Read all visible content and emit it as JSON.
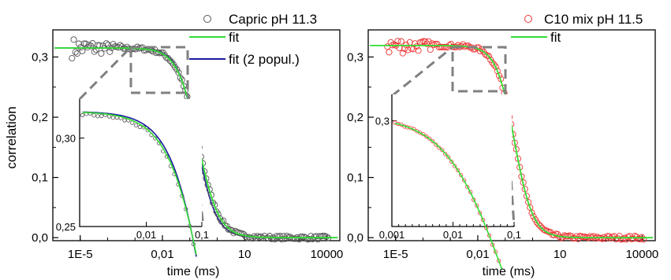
{
  "chart_data": [
    {
      "type": "scatter",
      "ylabel": "correlation",
      "xlabel": "time (ms)",
      "x_scale": "log",
      "xlim_ms": [
        1e-06,
        30000
      ],
      "ylim": [
        -0.005,
        0.345
      ],
      "x_ticks": [
        "1E-5",
        "0,01",
        "10",
        "10000"
      ],
      "y_ticks": [
        "0,0",
        "0,1",
        "0,2",
        "0,3"
      ],
      "legend": [
        "Capric pH 11.3",
        "fit",
        "fit (2 popul.)"
      ],
      "legend_position": "top-right",
      "colors": {
        "data": "#555555",
        "fit": "#33dd33",
        "fit2": "#1a1aa0",
        "zoom": "#808080"
      },
      "model": {
        "plateau": 0.315,
        "tau_ms": 0.2,
        "shape_k": 1.15
      },
      "inset": {
        "x_ticks": [
          "0,01",
          "0,1"
        ],
        "y_ticks": [
          "0,30",
          "0,25"
        ],
        "ylim": [
          0.25,
          0.32
        ]
      }
    },
    {
      "type": "scatter",
      "xlabel": "time (ms)",
      "x_scale": "log",
      "xlim_ms": [
        1e-06,
        30000
      ],
      "ylim": [
        -0.005,
        0.345
      ],
      "x_ticks": [
        "1E-5",
        "0,01",
        "10",
        "10000"
      ],
      "y_ticks": [
        "0,0",
        "0,1",
        "0,2",
        "0,3"
      ],
      "legend": [
        "C10 mix pH 11.5",
        "fit"
      ],
      "legend_position": "top-right",
      "colors": {
        "data": "#ee3333",
        "fit": "#33dd33",
        "zoom": "#808080"
      },
      "model": {
        "plateau": 0.319,
        "tau_ms": 0.22,
        "shape_k": 1.3
      },
      "inset": {
        "x_ticks": [
          "0,001",
          "0,01",
          "0,1"
        ],
        "y_ticks": [
          "0,3"
        ]
      }
    }
  ]
}
